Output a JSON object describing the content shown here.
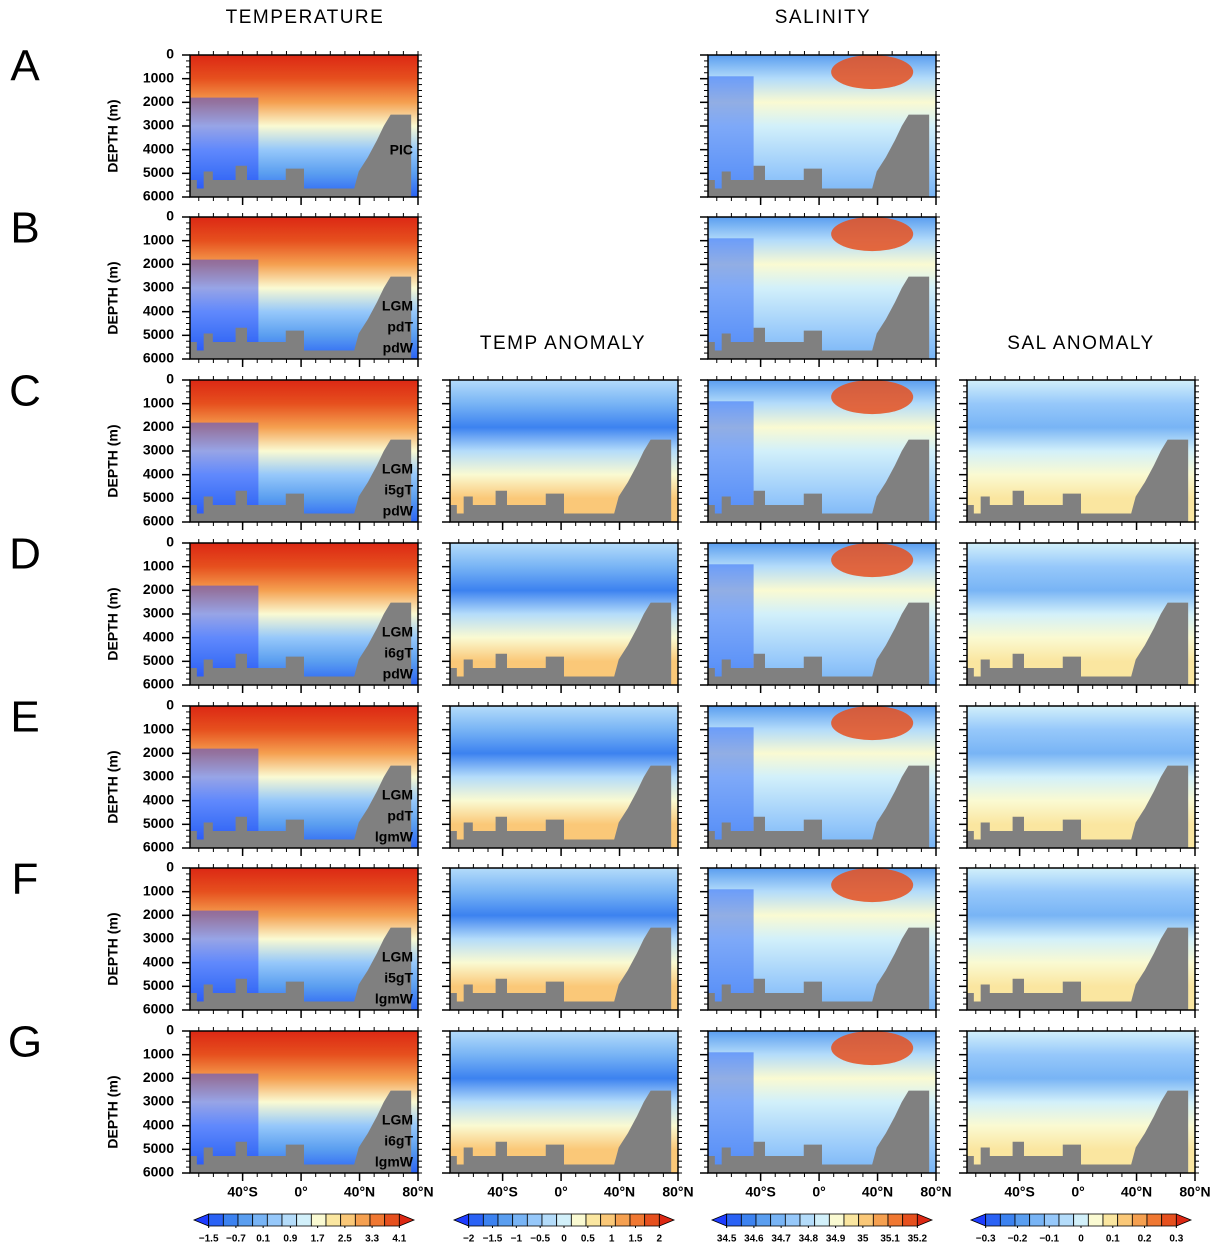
{
  "chart_data": {
    "type": "contour",
    "columns": [
      {
        "title": "TEMPERATURE"
      },
      {
        "title": "TEMP ANOMALY"
      },
      {
        "title": "SALINITY"
      },
      {
        "title": "SAL ANOMALY"
      }
    ],
    "y_label": "DEPTH (m)",
    "rows": [
      {
        "letter": "A",
        "label": [
          "PIC"
        ],
        "panels": [
          0,
          2
        ]
      },
      {
        "letter": "B",
        "label": [
          "LGM",
          "pdT",
          "pdW"
        ],
        "panels": [
          0,
          2
        ]
      },
      {
        "letter": "C",
        "label": [
          "LGM",
          "i5gT",
          "pdW"
        ],
        "panels": [
          0,
          1,
          2,
          3
        ]
      },
      {
        "letter": "D",
        "label": [
          "LGM",
          "i6gT",
          "pdW"
        ],
        "panels": [
          0,
          1,
          2,
          3
        ]
      },
      {
        "letter": "E",
        "label": [
          "LGM",
          "pdT",
          "lgmW"
        ],
        "panels": [
          0,
          1,
          2,
          3
        ]
      },
      {
        "letter": "F",
        "label": [
          "LGM",
          "i5gT",
          "lgmW"
        ],
        "panels": [
          0,
          1,
          2,
          3
        ]
      },
      {
        "letter": "G",
        "label": [
          "LGM",
          "i6gT",
          "lgmW"
        ],
        "panels": [
          0,
          1,
          2,
          3
        ]
      }
    ],
    "ylim": [
      0,
      6000
    ],
    "yticks": [
      0,
      1000,
      2000,
      3000,
      4000,
      5000,
      6000
    ],
    "xlim": [
      -76,
      80
    ],
    "xticks": [
      {
        "value": -40,
        "label": "40°S"
      },
      {
        "value": 0,
        "label": "0°"
      },
      {
        "value": 40,
        "label": "40°N"
      },
      {
        "value": 80,
        "label": "80°N"
      }
    ],
    "colorbars": [
      {
        "ticks": [
          {
            "value": -1.5,
            "label": "−1.5"
          },
          {
            "value": -0.7,
            "label": "−0.7"
          },
          0.1,
          0.9,
          1.7,
          2.5,
          3.3,
          4.1
        ],
        "colors": [
          "#1e3cff",
          "#2a62f5",
          "#3c82f0",
          "#5a9ef0",
          "#78b4f5",
          "#96c8fa",
          "#b4dcfa",
          "#d2f0fa",
          "#fafad2",
          "#fae6a0",
          "#fac878",
          "#f5a050",
          "#f07832",
          "#e6501e",
          "#dc2814"
        ]
      },
      {
        "ticks": [
          {
            "value": -2,
            "label": "−2"
          },
          {
            "value": -1.5,
            "label": "−1.5"
          },
          {
            "value": -1,
            "label": "−1"
          },
          {
            "value": -0.5,
            "label": "−0.5"
          },
          0,
          0.5,
          1,
          1.5,
          2
        ],
        "colors": [
          "#1e3cff",
          "#2a62f5",
          "#3c82f0",
          "#5a9ef0",
          "#78b4f5",
          "#96c8fa",
          "#b4dcfa",
          "#d2f0fa",
          "#fafad2",
          "#fae6a0",
          "#fac878",
          "#f5a050",
          "#f07832",
          "#e6501e",
          "#dc2814"
        ]
      },
      {
        "ticks": [
          34.5,
          34.6,
          34.7,
          34.8,
          34.9,
          35,
          35.1,
          35.2
        ],
        "colors": [
          "#1e3cff",
          "#2a62f5",
          "#3c82f0",
          "#5a9ef0",
          "#78b4f5",
          "#96c8fa",
          "#b4dcfa",
          "#d2f0fa",
          "#fafad2",
          "#fae6a0",
          "#fac878",
          "#f5a050",
          "#f07832",
          "#e6501e",
          "#dc2814"
        ]
      },
      {
        "ticks": [
          {
            "value": -0.3,
            "label": "−0.3"
          },
          {
            "value": -0.2,
            "label": "−0.2"
          },
          {
            "value": -0.1,
            "label": "−0.1"
          },
          0,
          0.1,
          0.2,
          0.3
        ],
        "colors": [
          "#1e3cff",
          "#2a62f5",
          "#3c82f0",
          "#5a9ef0",
          "#78b4f5",
          "#96c8fa",
          "#b4dcfa",
          "#d2f0fa",
          "#fafad2",
          "#fae6a0",
          "#fac878",
          "#f5a050",
          "#f07832",
          "#e6501e",
          "#dc2814"
        ]
      }
    ]
  }
}
